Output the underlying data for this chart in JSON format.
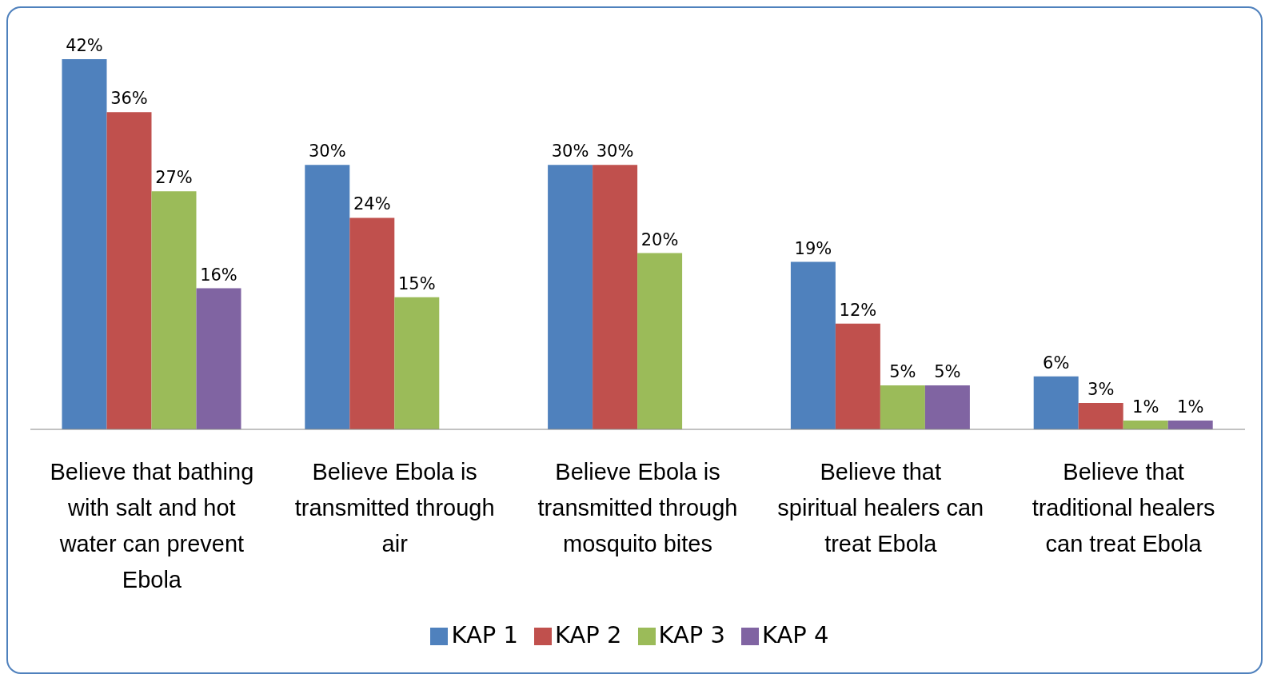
{
  "chart_data": {
    "type": "bar",
    "categories": [
      "Believe that bathing with salt and hot water can prevent Ebola",
      "Believe Ebola is transmitted through air",
      "Believe Ebola is transmitted through mosquito bites",
      "Believe that spiritual healers can treat Ebola",
      "Believe that traditional healers can treat Ebola"
    ],
    "series": [
      {
        "name": "KAP 1",
        "color": "#4f81bd",
        "values": [
          42,
          30,
          30,
          19,
          6
        ],
        "value_labels": [
          "42%",
          "30%",
          "30%",
          "19%",
          "6%"
        ]
      },
      {
        "name": "KAP 2",
        "color": "#c0504d",
        "values": [
          36,
          24,
          30,
          12,
          3
        ],
        "value_labels": [
          "36%",
          "24%",
          "30%",
          "12%",
          "3%"
        ]
      },
      {
        "name": "KAP 3",
        "color": "#9bbb59",
        "values": [
          27,
          15,
          20,
          5,
          1
        ],
        "value_labels": [
          "27%",
          "15%",
          "20%",
          "5%",
          "1%"
        ]
      },
      {
        "name": "KAP 4",
        "color": "#8064a2",
        "values": [
          16,
          null,
          null,
          5,
          1
        ],
        "value_labels": [
          "16%",
          null,
          null,
          "5%",
          "1%"
        ]
      }
    ],
    "legend": "bottom",
    "grid": false
  }
}
